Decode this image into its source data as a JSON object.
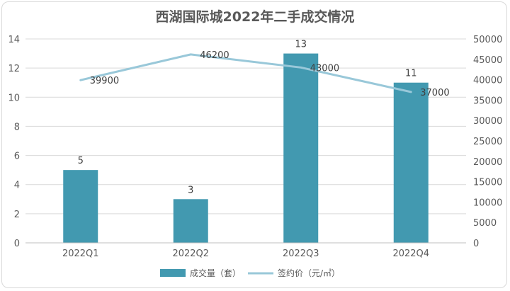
{
  "chart_data": {
    "type": "bar",
    "title": "西湖国际城2022年二手成交情况",
    "categories": [
      "2022Q1",
      "2022Q2",
      "2022Q3",
      "2022Q4"
    ],
    "series": [
      {
        "name": "成交量（套）",
        "type": "bar",
        "axis": "left",
        "values": [
          5,
          3,
          13,
          11
        ],
        "color": "#4299b0"
      },
      {
        "name": "签约价（元/㎡）",
        "type": "line",
        "axis": "right",
        "values": [
          39900,
          46200,
          43000,
          37000
        ],
        "color": "#99c8d9"
      }
    ],
    "y_left": {
      "min": 0,
      "max": 14,
      "step": 2
    },
    "y_right": {
      "min": 0,
      "max": 50000,
      "step": 5000
    },
    "grid": true,
    "legend": "bottom"
  }
}
